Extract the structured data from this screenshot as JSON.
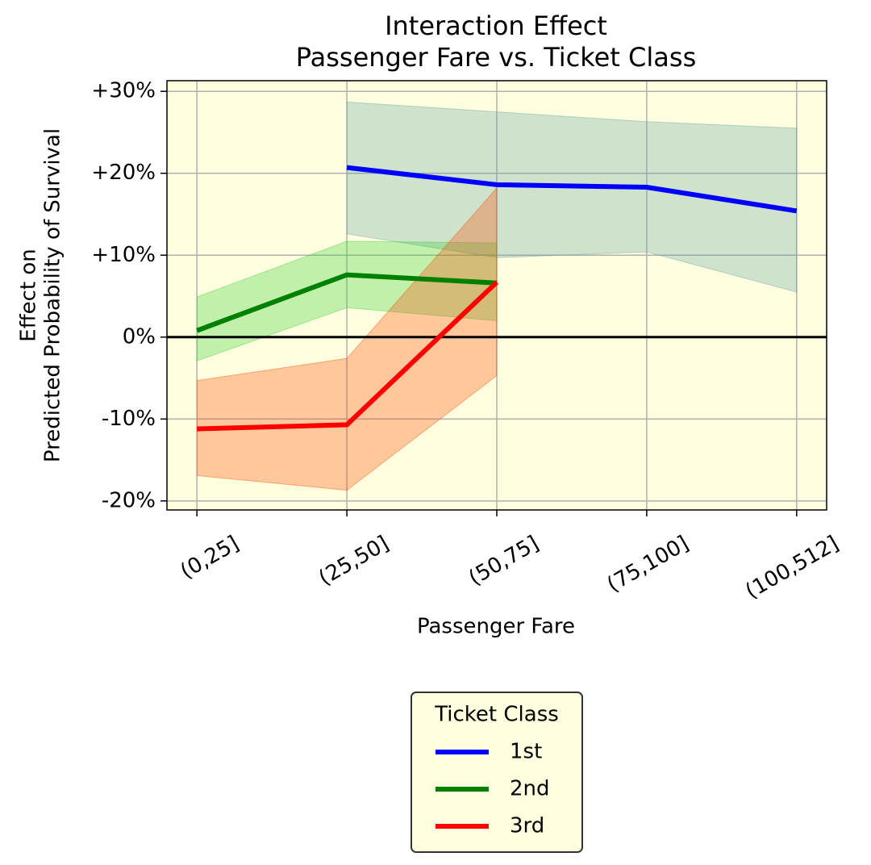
{
  "chart_data": {
    "type": "line",
    "title": [
      "Interaction Effect",
      "Passenger Fare vs. Ticket Class"
    ],
    "x_label": "Passenger Fare",
    "y_label": [
      "Effect on",
      "Predicted Probability of Survival"
    ],
    "categories": [
      "(0,25]",
      "(25,50]",
      "(50,75]",
      "(75,100]",
      "(100,512]"
    ],
    "series": [
      {
        "name": "1st",
        "color": "#0000ff",
        "band_color": "#5f9ea0",
        "values": [
          null,
          20.7,
          18.6,
          18.3,
          15.4
        ],
        "lower": [
          null,
          12.6,
          9.7,
          10.4,
          5.5
        ],
        "upper": [
          null,
          28.7,
          27.5,
          26.3,
          25.5
        ]
      },
      {
        "name": "2nd",
        "color": "#008000",
        "band_color": "#32cd32",
        "values": [
          0.8,
          7.6,
          6.6,
          null,
          null
        ],
        "lower": [
          -2.9,
          3.6,
          2.0,
          null,
          null
        ],
        "upper": [
          4.9,
          11.7,
          11.5,
          null,
          null
        ]
      },
      {
        "name": "3rd",
        "color": "#ff0000",
        "band_color": "#ff4500",
        "values": [
          -11.2,
          -10.7,
          6.7,
          null,
          null
        ],
        "lower": [
          -16.9,
          -18.7,
          -4.7,
          null,
          null
        ],
        "upper": [
          -5.3,
          -2.6,
          18.2,
          null,
          null
        ]
      }
    ],
    "ylim": [
      -21.1,
      31.3
    ],
    "yticks": [
      {
        "value": -20,
        "label": "-20%"
      },
      {
        "value": -10,
        "label": "-10%"
      },
      {
        "value": 0,
        "label": "0%"
      },
      {
        "value": 10,
        "label": "+10%"
      },
      {
        "value": 20,
        "label": "+20%"
      },
      {
        "value": 30,
        "label": "+30%"
      }
    ],
    "hline": 0,
    "grid": true,
    "legend_title": "Ticket Class",
    "legend_position": "bottom",
    "background": "#ffffe0"
  }
}
